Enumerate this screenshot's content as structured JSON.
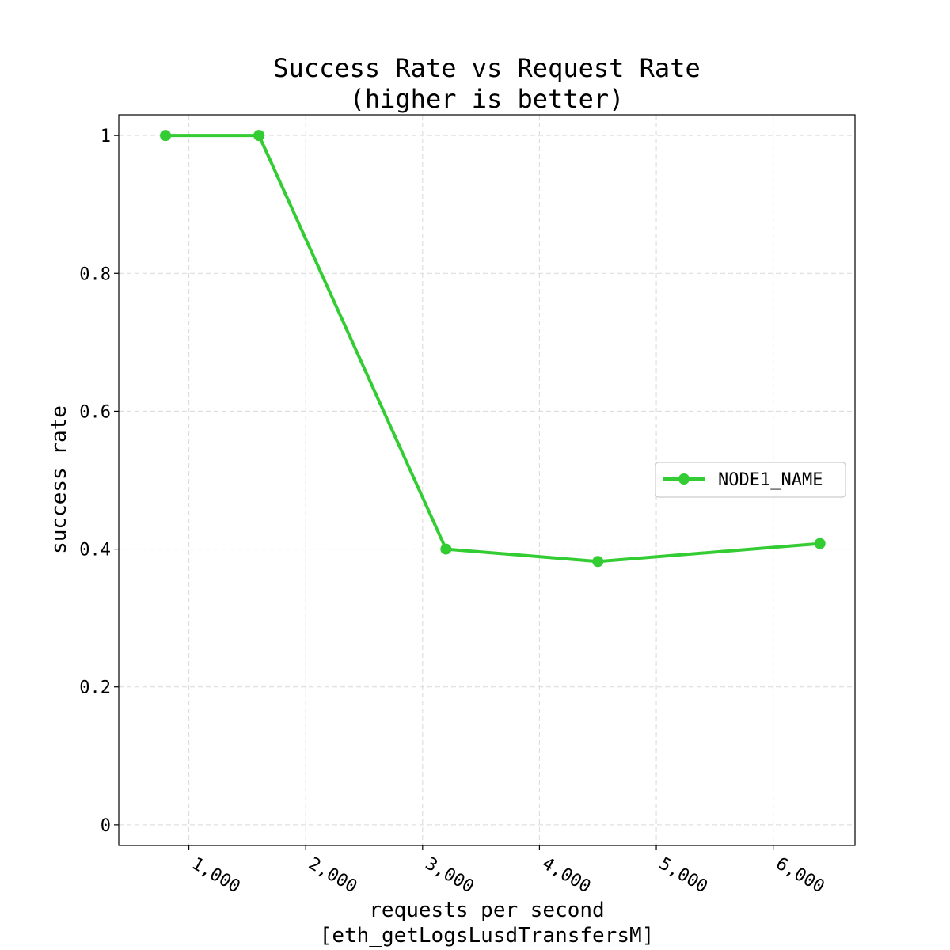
{
  "chart_data": {
    "type": "line",
    "title_line1": "Success Rate vs Request Rate",
    "title_line2": "(higher is better)",
    "xlabel_line1": "requests per second",
    "xlabel_line2": "[eth_getLogsLusdTransfersM]",
    "ylabel": "success rate",
    "xlim": [
      400,
      6700
    ],
    "ylim": [
      -0.03,
      1.03
    ],
    "x_ticks": [
      1000,
      2000,
      3000,
      4000,
      5000,
      6000
    ],
    "x_tick_labels": [
      "1,000",
      "2,000",
      "3,000",
      "4,000",
      "5,000",
      "6,000"
    ],
    "y_ticks": [
      0,
      0.2,
      0.4,
      0.6,
      0.8,
      1
    ],
    "y_tick_labels": [
      "0",
      "0.2",
      "0.4",
      "0.6",
      "0.8",
      "1"
    ],
    "grid": true,
    "legend_position": "center-right",
    "series": [
      {
        "name": "NODE1_NAME",
        "color": "#33cc33",
        "x": [
          800,
          1600,
          3200,
          4500,
          6400
        ],
        "y": [
          1.0,
          1.0,
          0.4,
          0.382,
          0.408
        ]
      }
    ]
  }
}
